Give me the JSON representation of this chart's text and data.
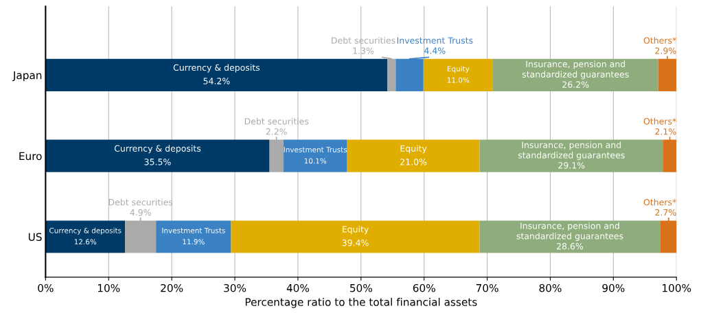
{
  "chart_data": {
    "type": "bar",
    "orientation": "horizontal",
    "stacked": true,
    "categories": [
      "Japan",
      "Euro",
      "US"
    ],
    "xlabel": "Percentage ratio to the total financial assets",
    "xlim": [
      0,
      100
    ],
    "xticks": [
      {
        "value": 0,
        "label": "0%"
      },
      {
        "value": 10,
        "label": "10%"
      },
      {
        "value": 20,
        "label": "20%"
      },
      {
        "value": 30,
        "label": "30%"
      },
      {
        "value": 40,
        "label": "40%"
      },
      {
        "value": 50,
        "label": "50%"
      },
      {
        "value": 60,
        "label": "60%"
      },
      {
        "value": 70,
        "label": "70%"
      },
      {
        "value": 80,
        "label": "80%"
      },
      {
        "value": 90,
        "label": "90%"
      },
      {
        "value": 100,
        "label": "100%"
      }
    ],
    "grid": "x",
    "legend": false,
    "series": [
      {
        "name": "Currency & deposits",
        "color": "#003a66",
        "values": [
          54.2,
          35.5,
          12.6
        ],
        "value_labels": [
          "54.2%",
          "35.5%",
          "12.6%"
        ]
      },
      {
        "name": "Debt securities",
        "color": "#aaaaaa",
        "values": [
          1.3,
          2.2,
          4.9
        ],
        "value_labels": [
          "1.3%",
          "2.2%",
          "4.9%"
        ]
      },
      {
        "name": "Investment Trusts",
        "color": "#3b82c4",
        "values": [
          4.4,
          10.1,
          11.9
        ],
        "value_labels": [
          "4.4%",
          "10.1%",
          "11.9%"
        ]
      },
      {
        "name": "Equity",
        "color": "#dfae00",
        "values": [
          11.0,
          21.0,
          39.4
        ],
        "value_labels": [
          "11.0%",
          "21.0%",
          "39.4%"
        ]
      },
      {
        "name": "Insurance, pension and\nstandardized guarantees",
        "color": "#8fad7c",
        "values": [
          26.2,
          29.1,
          28.6
        ],
        "value_labels": [
          "26.2%",
          "29.1%",
          "28.6%"
        ]
      },
      {
        "name": "Others*",
        "color": "#d9721a",
        "values": [
          2.9,
          2.1,
          2.7
        ],
        "value_labels": [
          "2.9%",
          "2.1%",
          "2.7%"
        ]
      }
    ]
  }
}
